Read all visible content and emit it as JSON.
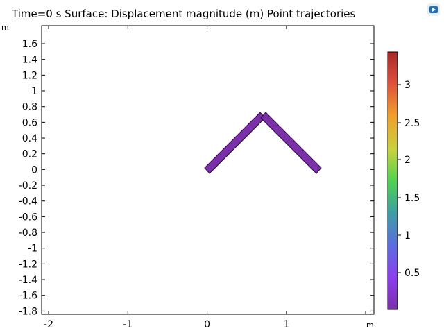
{
  "title": "Time=0 s   Surface: Displacement magnitude (m) Point trajectories",
  "axis_unit_y": "m",
  "axis_unit_x": "m",
  "x_ticks": [
    "-2",
    "-1",
    "0",
    "1"
  ],
  "y_ticks": [
    "1.6",
    "1.4",
    "1.2",
    "1",
    "0.8",
    "0.6",
    "0.4",
    "0.2",
    "0",
    "-0.2",
    "-0.4",
    "-0.6",
    "-0.8",
    "-1",
    "-1.2",
    "-1.4",
    "-1.6",
    "-1.8"
  ],
  "colorbar": {
    "labels": [
      "3",
      "2.5",
      "2",
      "1.5",
      "1",
      "0.5"
    ],
    "colormap": [
      "#7b2fa8",
      "#8c3cf0",
      "#5a6ee0",
      "#3ca0a0",
      "#4fd24f",
      "#c8d23c",
      "#f0a028",
      "#e0503c",
      "#a82828"
    ]
  },
  "colors": {
    "beam_fill": "#7b2fa8",
    "beam_stroke": "#2a0a3a"
  }
}
